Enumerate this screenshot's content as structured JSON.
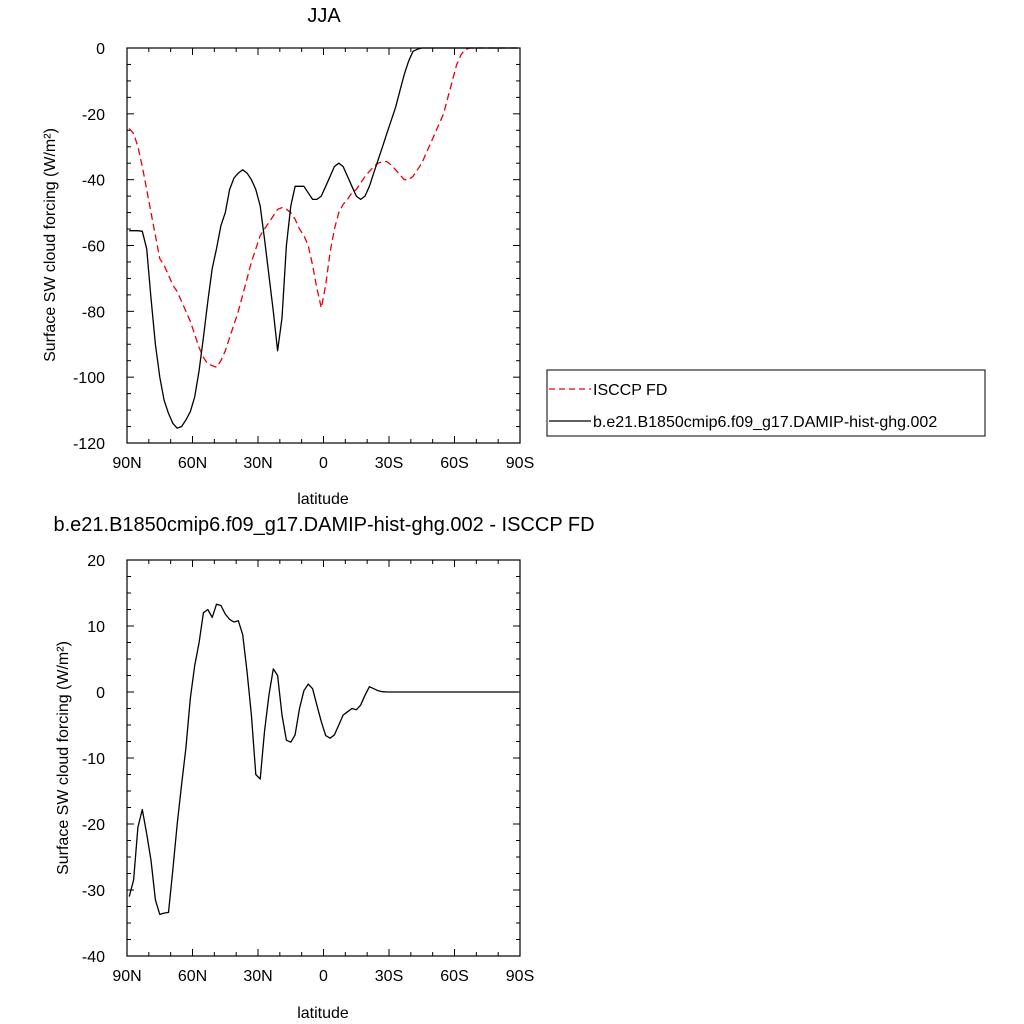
{
  "chart_data": [
    {
      "type": "line",
      "title": "JJA",
      "xlabel": "latitude",
      "ylabel": "Surface SW cloud forcing (W/m²)",
      "xlim": [
        90,
        -90
      ],
      "ylim": [
        -120,
        0
      ],
      "x_ticks": [
        {
          "value": 90,
          "label": "90N"
        },
        {
          "value": 60,
          "label": "60N"
        },
        {
          "value": 30,
          "label": "30N"
        },
        {
          "value": 0,
          "label": "0"
        },
        {
          "value": -30,
          "label": "30S"
        },
        {
          "value": -60,
          "label": "60S"
        },
        {
          "value": -90,
          "label": "90S"
        }
      ],
      "y_ticks": [
        0,
        -20,
        -40,
        -60,
        -80,
        -100,
        -120
      ],
      "legend": {
        "placement": "right",
        "entries": [
          "ISCCP FD",
          "b.e21.B1850cmip6.f09_g17.DAMIP-hist-ghg.002"
        ]
      },
      "series": [
        {
          "name": "ISCCP FD",
          "color": "#e8000b",
          "dash": "dashed",
          "x": [
            89,
            87,
            85,
            83,
            81,
            79,
            77,
            75,
            73,
            71,
            69,
            67,
            65,
            63,
            61,
            59,
            57,
            55,
            53,
            51,
            49,
            47,
            45,
            43,
            41,
            39,
            37,
            35,
            33,
            31,
            29,
            27,
            25,
            23,
            21,
            19,
            17,
            15,
            13,
            11,
            9,
            7,
            5,
            3,
            1,
            -1,
            -3,
            -5,
            -7,
            -9,
            -11,
            -13,
            -15,
            -17,
            -19,
            -21,
            -23,
            -25,
            -27,
            -29,
            -31,
            -33,
            -35,
            -37,
            -39,
            -41,
            -43,
            -45,
            -47,
            -49,
            -51,
            -53,
            -55,
            -57,
            -59,
            -61,
            -63,
            -65,
            -67,
            -69,
            -71,
            -73,
            -75,
            -77,
            -79,
            -81,
            -83,
            -85,
            -87,
            -89
          ],
          "values": [
            -24.5,
            -26,
            -30,
            -36,
            -43,
            -50,
            -57,
            -64,
            -66,
            -69,
            -72,
            -74,
            -77,
            -80,
            -83,
            -87,
            -91,
            -94,
            -96,
            -96.5,
            -97,
            -95,
            -92,
            -88,
            -84,
            -80,
            -75,
            -70,
            -65,
            -61,
            -57,
            -55,
            -53,
            -51,
            -49,
            -48.5,
            -49,
            -50,
            -52,
            -55,
            -57,
            -60,
            -66,
            -73,
            -79,
            -72,
            -62,
            -55,
            -50,
            -47.5,
            -46,
            -44,
            -43,
            -41,
            -39,
            -37.5,
            -36,
            -35,
            -34.5,
            -34.5,
            -35.5,
            -37,
            -38.5,
            -40,
            -40,
            -39,
            -37,
            -35,
            -32,
            -29,
            -26,
            -23,
            -20,
            -15,
            -10,
            -5,
            -2,
            -0.5,
            0,
            0,
            0,
            0,
            0,
            0,
            0,
            0,
            0,
            0,
            0,
            0
          ]
        },
        {
          "name": "b.e21.B1850cmip6.f09_g17.DAMIP-hist-ghg.002",
          "color": "#000000",
          "dash": "solid",
          "x": [
            89,
            87,
            85,
            83,
            81,
            79,
            77,
            75,
            73,
            71,
            69,
            67,
            65,
            63,
            61,
            59,
            57,
            55,
            53,
            51,
            49,
            47,
            45,
            43,
            41,
            39,
            37,
            35,
            33,
            31,
            29,
            27,
            25,
            23,
            21,
            19,
            17,
            15,
            13,
            11,
            9,
            7,
            5,
            3,
            1,
            -1,
            -3,
            -5,
            -7,
            -9,
            -11,
            -13,
            -15,
            -17,
            -19,
            -21,
            -23,
            -25,
            -27,
            -29,
            -31,
            -33,
            -35,
            -37,
            -39,
            -41,
            -43,
            -45,
            -47,
            -49,
            -51,
            -53,
            -55,
            -57,
            -59,
            -61,
            -63,
            -65,
            -67,
            -69,
            -71,
            -73,
            -75,
            -77,
            -79,
            -81,
            -83,
            -85,
            -87,
            -89
          ],
          "values": [
            -55.5,
            -55.5,
            -55.5,
            -55.7,
            -61,
            -76,
            -90,
            -100,
            -107,
            -111,
            -114,
            -115.5,
            -115,
            -113,
            -110.5,
            -106,
            -98,
            -88,
            -77,
            -67,
            -61,
            -54,
            -50,
            -43,
            -39.5,
            -38,
            -37,
            -38,
            -40,
            -43,
            -48,
            -58,
            -69,
            -80,
            -92,
            -82,
            -60,
            -48,
            -42,
            -42,
            -42,
            -44,
            -46,
            -46,
            -45,
            -42,
            -39,
            -36,
            -35,
            -36,
            -39,
            -42,
            -45,
            -46,
            -45,
            -42,
            -38,
            -34,
            -30,
            -26,
            -22,
            -18,
            -13,
            -8,
            -4,
            -1,
            -0.4,
            0,
            0,
            0,
            0,
            0,
            0,
            0,
            0,
            0,
            0,
            0,
            0,
            0,
            0,
            0,
            0,
            0,
            0,
            0,
            0,
            0,
            0,
            0
          ]
        }
      ]
    },
    {
      "type": "line",
      "title": "b.e21.B1850cmip6.f09_g17.DAMIP-hist-ghg.002 - ISCCP FD",
      "xlabel": "latitude",
      "ylabel": "Surface SW cloud forcing (W/m²)",
      "xlim": [
        90,
        -90
      ],
      "ylim": [
        -40,
        20
      ],
      "x_ticks": [
        {
          "value": 90,
          "label": "90N"
        },
        {
          "value": 60,
          "label": "60N"
        },
        {
          "value": 30,
          "label": "30N"
        },
        {
          "value": 0,
          "label": "0"
        },
        {
          "value": -30,
          "label": "30S"
        },
        {
          "value": -60,
          "label": "60S"
        },
        {
          "value": -90,
          "label": "90S"
        }
      ],
      "y_ticks": [
        20,
        10,
        0,
        -10,
        -20,
        -30,
        -40
      ],
      "series": [
        {
          "color": "#000000",
          "dash": "solid",
          "x": [
            89,
            87,
            85,
            83,
            81,
            79,
            77,
            75,
            73,
            71,
            69,
            67,
            65,
            63,
            61,
            59,
            57,
            55,
            53,
            51,
            49,
            47,
            45,
            43,
            41,
            39,
            37,
            35,
            33,
            31,
            29,
            27,
            25,
            23,
            21,
            19,
            17,
            15,
            13,
            11,
            9,
            7,
            5,
            3,
            1,
            -1,
            -3,
            -5,
            -7,
            -9,
            -11,
            -13,
            -15,
            -17,
            -19,
            -21,
            -23,
            -25,
            -27,
            -29,
            -31,
            -33,
            -35,
            -37,
            -39,
            -41,
            -43,
            -45,
            -47,
            -49,
            -51,
            -53,
            -55,
            -57,
            -59,
            -61,
            -63,
            -65,
            -67,
            -69,
            -71,
            -73,
            -75,
            -77,
            -79,
            -81,
            -83,
            -85,
            -87,
            -89
          ],
          "values": [
            -31,
            -28.5,
            -20.5,
            -17.8,
            -21.5,
            -25.5,
            -31.5,
            -33.7,
            -33.5,
            -33.4,
            -27,
            -20,
            -14,
            -8.5,
            -1,
            4,
            7.5,
            12,
            12.5,
            11.3,
            13.3,
            13.1,
            11.8,
            11,
            10.6,
            10.8,
            8.7,
            3,
            -3.5,
            -12.5,
            -13.2,
            -6,
            -0.5,
            3.5,
            2.5,
            -3.5,
            -7.3,
            -7.6,
            -6.5,
            -2.5,
            0.2,
            1.2,
            0.5,
            -2,
            -4.5,
            -6.6,
            -7,
            -6.5,
            -5,
            -3.5,
            -3,
            -2.5,
            -2.7,
            -2,
            -0.5,
            0.8,
            0.5,
            0.2,
            0.05,
            0,
            0,
            0,
            0,
            0,
            0,
            0,
            0,
            0,
            0,
            0,
            0,
            0,
            0,
            0,
            0,
            0,
            0,
            0,
            0,
            0,
            0,
            0,
            0,
            0,
            0,
            0,
            0,
            0,
            0,
            0
          ]
        }
      ]
    }
  ]
}
